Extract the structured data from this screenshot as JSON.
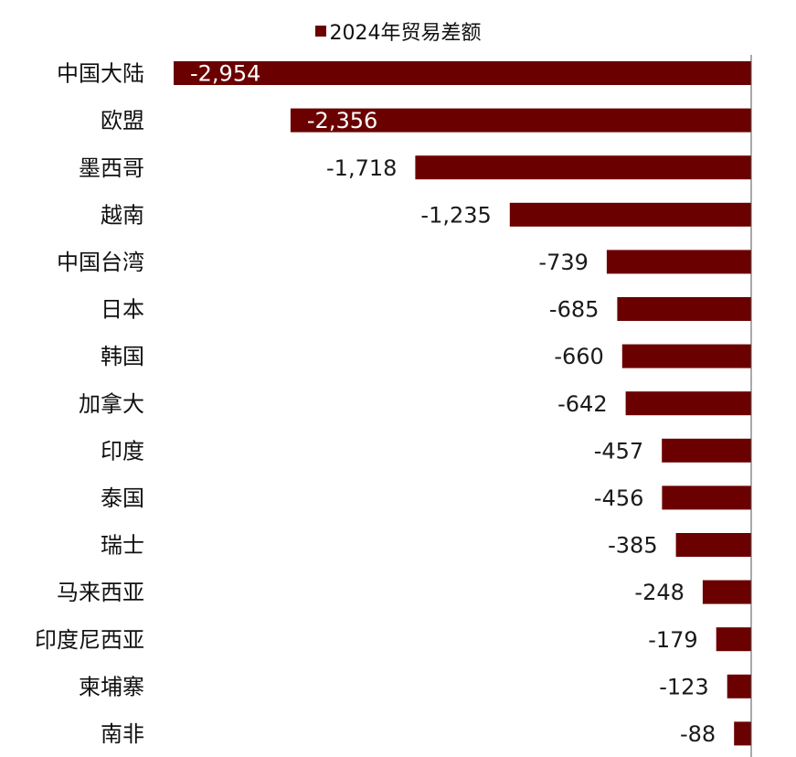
{
  "chart_data": {
    "type": "bar",
    "orientation": "horizontal",
    "categories": [
      "中国大陆",
      "欧盟",
      "墨西哥",
      "越南",
      "中国台湾",
      "日本",
      "韩国",
      "加拿大",
      "印度",
      "泰国",
      "瑞士",
      "马来西亚",
      "印度尼西亚",
      "柬埔寨",
      "南非"
    ],
    "series": [
      {
        "name": "2024年贸易差额",
        "values": [
          -2954,
          -2356,
          -1718,
          -1235,
          -739,
          -685,
          -660,
          -642,
          -457,
          -456,
          -385,
          -248,
          -179,
          -123,
          -88
        ],
        "labels": [
          "-2,954",
          "-2,356",
          "-1,718",
          "-1,235",
          "-739",
          "-685",
          "-660",
          "-642",
          "-457",
          "-456",
          "-385",
          "-248",
          "-179",
          "-123",
          "-88"
        ]
      }
    ],
    "xlim": [
      -2954,
      0
    ],
    "grid": false,
    "legend_position": "top",
    "data_labels": "end-of-bar; inside bar (white) for the two longest bars, outside (black) for the rest",
    "colors": {
      "bar": "#6b0000",
      "label_inside": "#ffffff",
      "label_outside": "#1a1a1a",
      "axis": "#555555"
    }
  }
}
